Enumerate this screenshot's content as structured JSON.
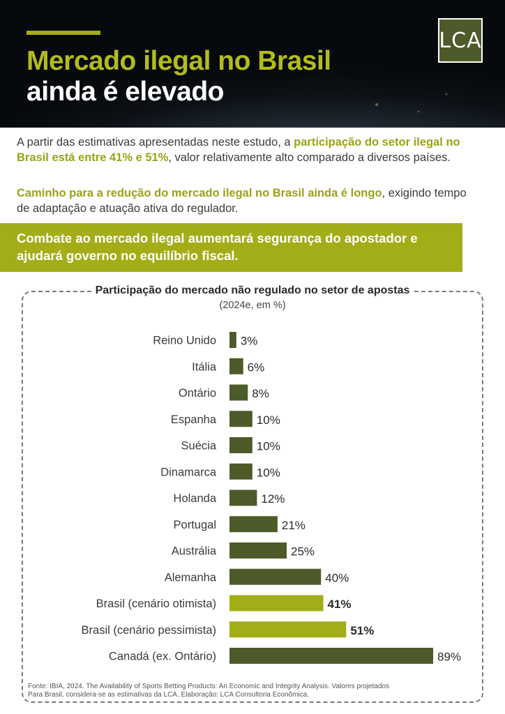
{
  "header": {
    "title_line1": "Mercado ilegal no Brasil",
    "title_line2": "ainda é elevado",
    "logo_text": "LCA"
  },
  "intro": {
    "p1_a": "A partir das estimativas apresentadas neste estudo, a ",
    "p1_bold": "participação do setor ilegal no Brasil está entre 41% e 51%",
    "p1_b": ", valor relativamente alto comparado a diversos países.",
    "p2_bold": "Caminho para a redução do mercado ilegal no Brasil ainda é longo",
    "p2_b": ", exigindo tempo de adaptação e atuação ativa do regulador."
  },
  "banner": {
    "text": "Combate ao mercado ilegal aumentará segurança do apostador e ajudará governo no equilíbrio fiscal."
  },
  "chart_data": {
    "type": "bar",
    "orientation": "horizontal",
    "title": "Participação do mercado não regulado no setor de apostas",
    "subtitle": "(2024e, em %)",
    "categories": [
      "Reino Unido",
      "Itália",
      "Ontário",
      "Espanha",
      "Suécia",
      "Dinamarca",
      "Holanda",
      "Portugal",
      "Austrália",
      "Alemanha",
      "Brasil (cenário otimista)",
      "Brasil (cenário pessimista)",
      "Canadá (ex. Ontário)"
    ],
    "values": [
      3,
      6,
      8,
      10,
      10,
      10,
      12,
      21,
      25,
      40,
      41,
      51,
      89
    ],
    "labels": [
      "3%",
      "6%",
      "8%",
      "10%",
      "10%",
      "10%",
      "12%",
      "21%",
      "25%",
      "40%",
      "41%",
      "51%",
      "89%"
    ],
    "highlighted": [
      "Brasil (cenário otimista)",
      "Brasil (cenário pessimista)"
    ],
    "colors": {
      "default": "#4d5a2a",
      "highlight": "#a3ad18"
    },
    "xlim": [
      0,
      89
    ],
    "grid": false,
    "legend": "none"
  },
  "source": {
    "line1": "Fonte: IBIA, 2024. The Availability of Sports Betting Products: An Economic and Integrity Analysis. Valores projetados",
    "line2": "Para Brasil, considera-se as estimativas da LCA. Elaboração: LCA Consultoria Econômica."
  }
}
